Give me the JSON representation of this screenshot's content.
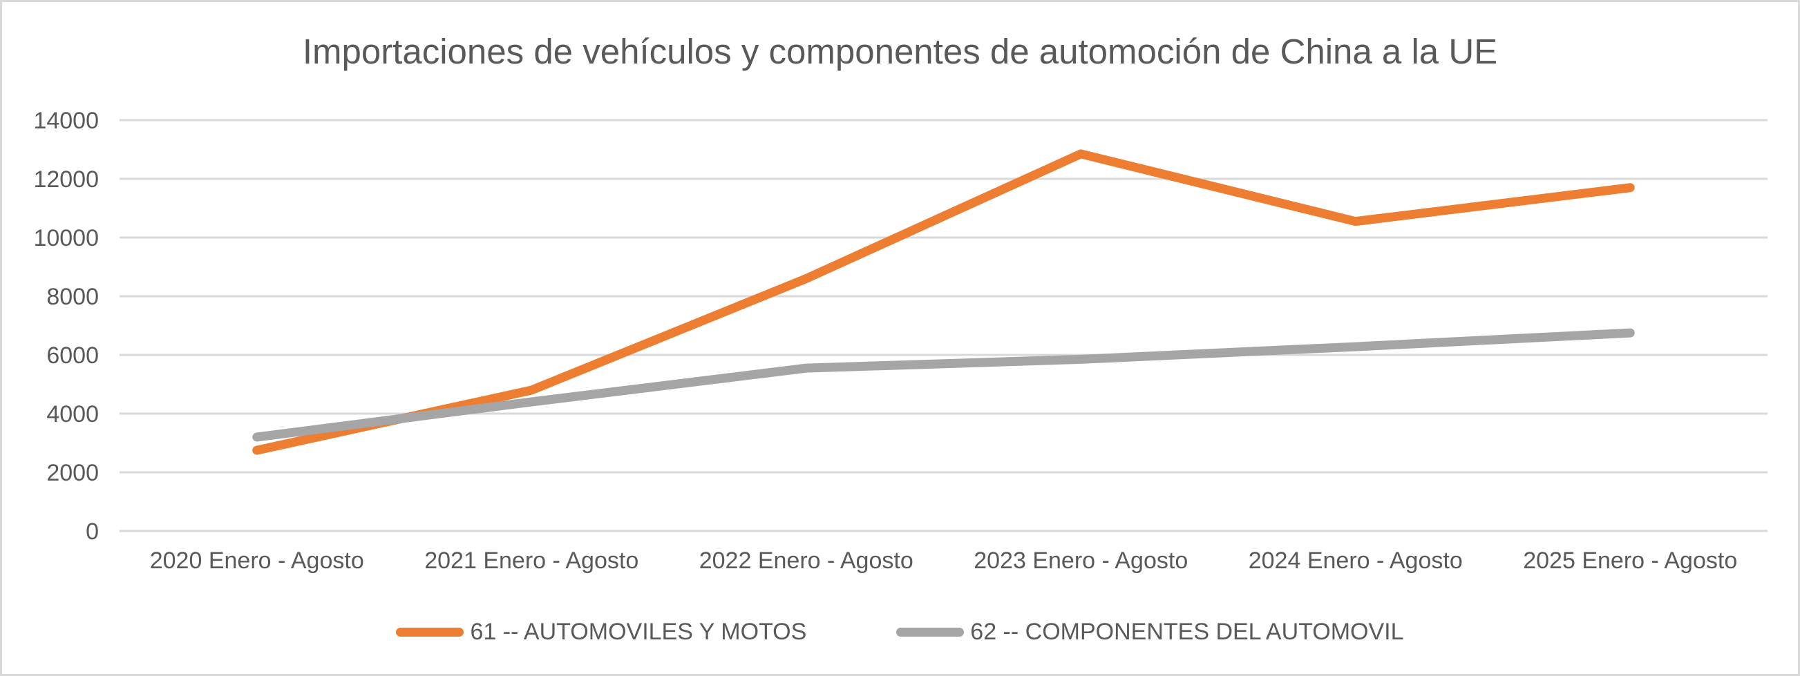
{
  "chart_data": {
    "type": "line",
    "title": "Importaciones de vehículos y componentes de automoción de China a la UE",
    "categories": [
      "2020 Enero - Agosto",
      "2021 Enero - Agosto",
      "2022 Enero - Agosto",
      "2023 Enero - Agosto",
      "2024 Enero - Agosto",
      "2025 Enero - Agosto"
    ],
    "series": [
      {
        "name": "61 -- AUTOMOVILES Y MOTOS",
        "color": "#ED7D31",
        "values": [
          2750,
          4800,
          8600,
          12850,
          10550,
          11700
        ]
      },
      {
        "name": "62 -- COMPONENTES DEL AUTOMOVIL",
        "color": "#A5A5A5",
        "values": [
          3200,
          4400,
          5550,
          5850,
          6280,
          6750
        ]
      }
    ],
    "ylim": [
      0,
      14000
    ],
    "ytick_step": 2000,
    "ytick_labels": [
      "0",
      "2000",
      "4000",
      "6000",
      "8000",
      "10000",
      "12000",
      "14000"
    ],
    "grid": "horizontal",
    "legend_position": "bottom",
    "text_color": "#595959",
    "gridline_color": "#D9D9D9",
    "frame_border_color": "#D9D9D9",
    "background_color": "#FFFFFF"
  }
}
